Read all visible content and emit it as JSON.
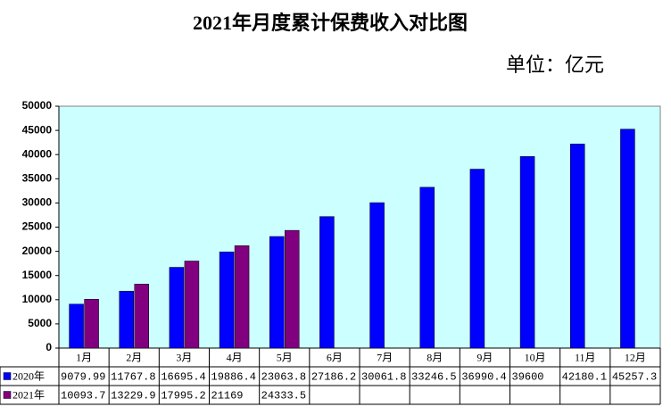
{
  "chart_data": {
    "type": "bar",
    "title": "2021年月度累计保费收入对比图",
    "subtitle": "单位：亿元",
    "categories": [
      "1月",
      "2月",
      "3月",
      "4月",
      "5月",
      "6月",
      "7月",
      "8月",
      "9月",
      "10月",
      "11月",
      "12月"
    ],
    "series": [
      {
        "name": "2020年",
        "color": "#0000ff",
        "values": [
          9079.99,
          11767.8,
          16695.4,
          19886.4,
          23063.8,
          27186.2,
          30061.8,
          33246.5,
          36990.4,
          39600,
          42180.1,
          45257.3
        ]
      },
      {
        "name": "2021年",
        "color": "#800080",
        "values": [
          10093.7,
          13229.9,
          17995.2,
          21169,
          24333.5,
          null,
          null,
          null,
          null,
          null,
          null,
          null
        ]
      }
    ],
    "ylim": [
      0,
      50000
    ],
    "yticks": [
      0,
      5000,
      10000,
      15000,
      20000,
      25000,
      30000,
      35000,
      40000,
      45000,
      50000
    ],
    "grid": false,
    "plot_background": "#ccffff"
  }
}
